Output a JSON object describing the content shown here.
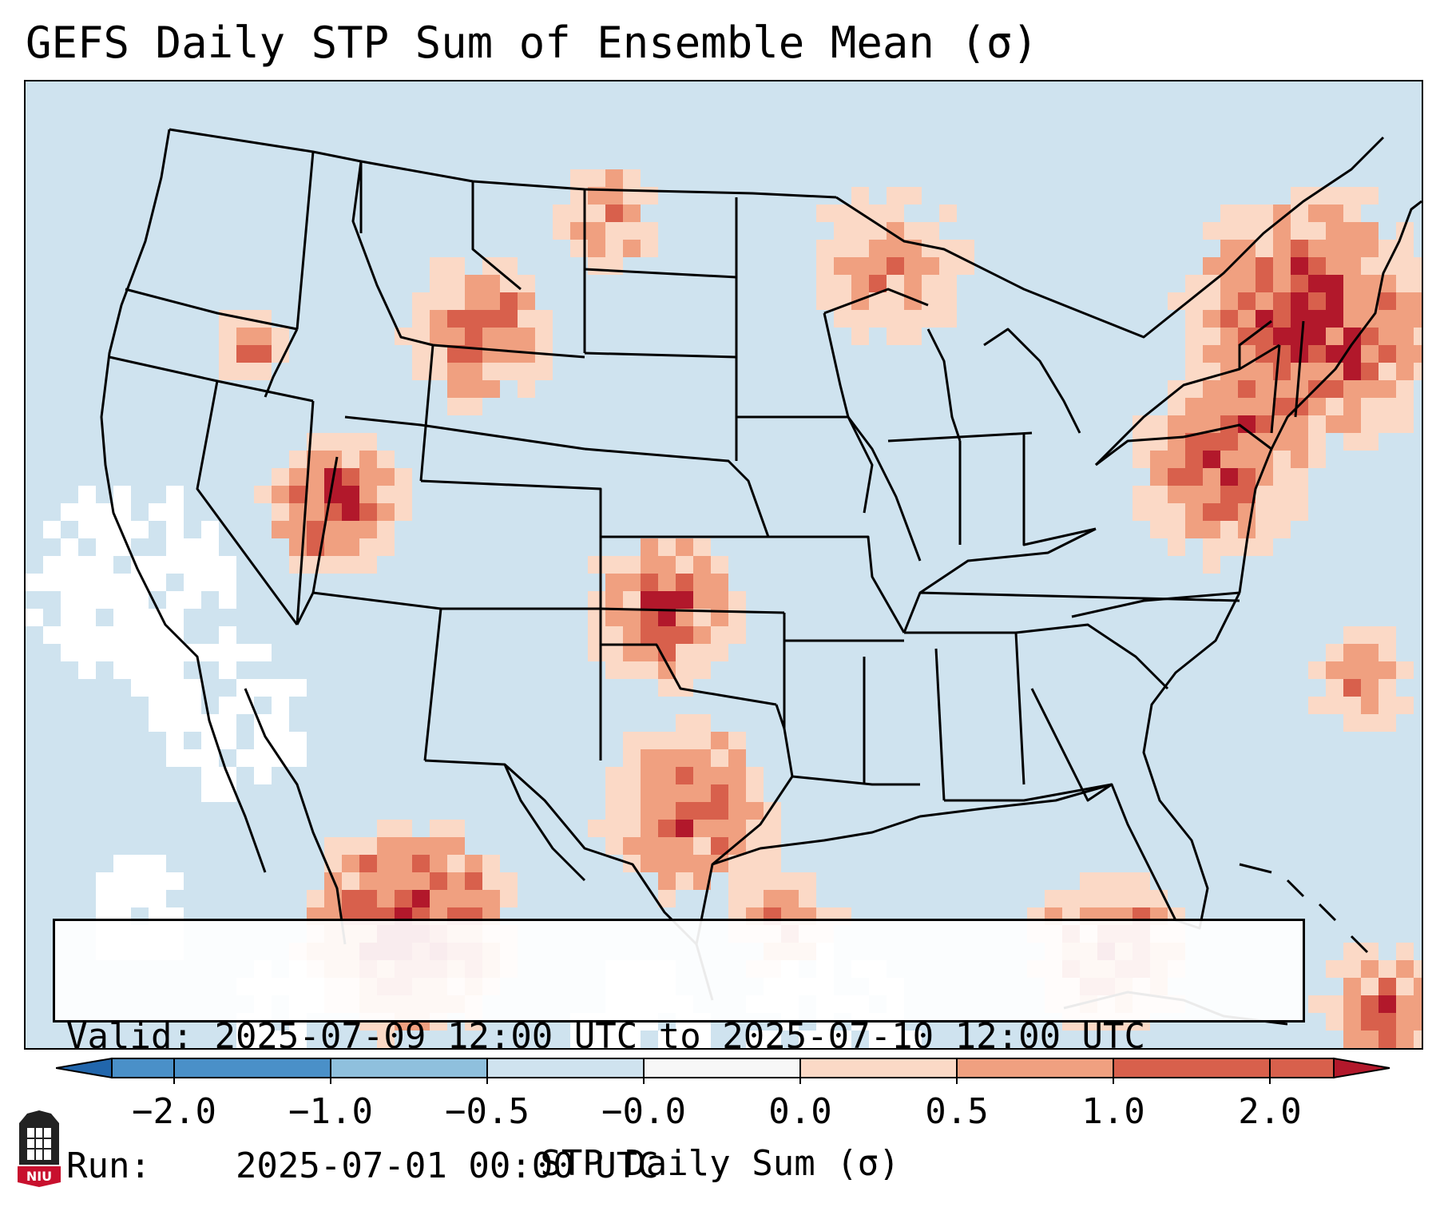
{
  "title": "GEFS Daily STP Sum of Ensemble Mean (σ)",
  "info": {
    "valid_label": "Valid:",
    "valid_value": "2025-07-09 12:00 UTC to 2025-07-10 12:00 UTC",
    "run_label": "Run:",
    "run_value": "2025-07-01 00:00 UTC"
  },
  "colorbar": {
    "label": "STP Daily Sum (σ)",
    "ticks": [
      "−2.0",
      "−1.0",
      "−0.5",
      "−0.0",
      "0.0",
      "0.5",
      "1.0",
      "2.0"
    ],
    "colors": [
      "#4a90c8",
      "#8fc0dd",
      "#cfe3ef",
      "#f7f7f7",
      "#fbd9c6",
      "#f0a080",
      "#d8604c",
      "#b2182b"
    ],
    "under_color": "#2166ac",
    "over_color": "#b2182b"
  },
  "map": {
    "ocean_color": "#cfe3ef",
    "land_color": "#cfe3ef",
    "border_color": "#000000",
    "anomaly_levels": {
      "low": "#fbd9c6",
      "mid": "#f0a080",
      "high": "#d8604c",
      "extreme": "#b2182b",
      "neutral": "#ffffff"
    }
  },
  "logo": {
    "text": "NIU",
    "color": "#c8102e"
  }
}
